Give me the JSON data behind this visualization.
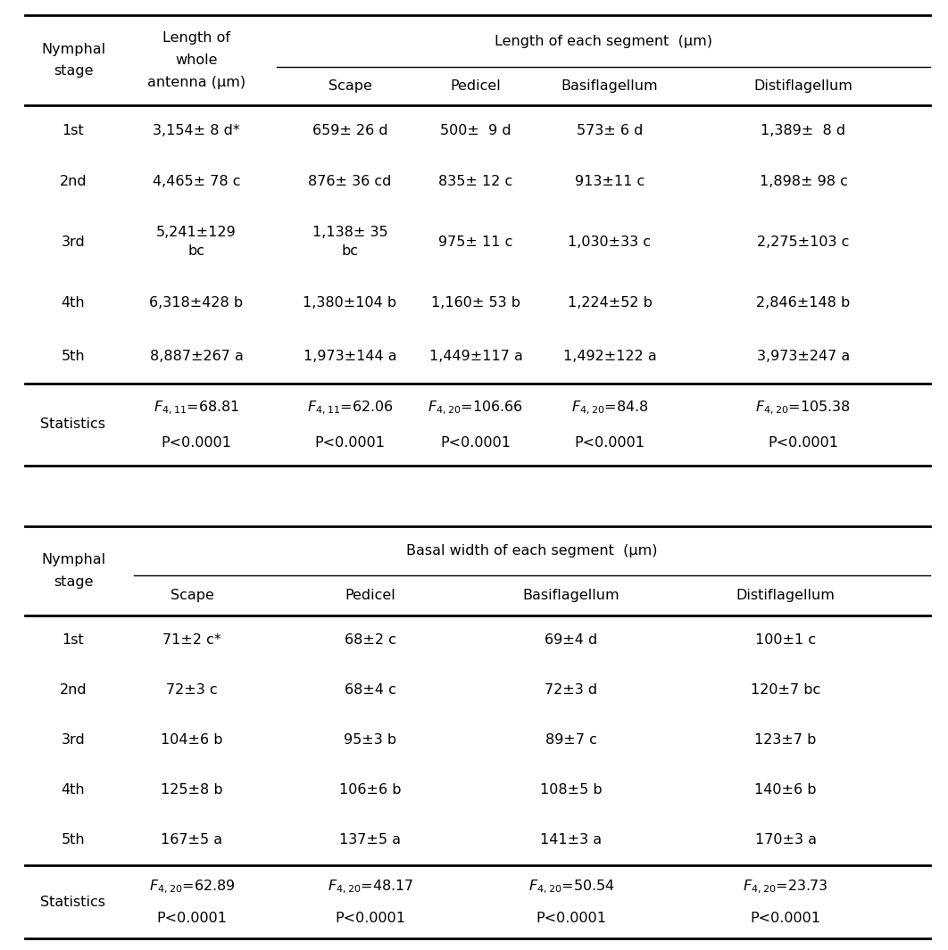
{
  "table1": {
    "col_headers": [
      "Nymphal\nstage",
      "Length of\nwhole\nantenna (μm)",
      "Scape",
      "Pedicel",
      "Basiflagellum",
      "Distiflagellum"
    ],
    "span_header": "Length of each segment  (μm)",
    "rows": [
      [
        "1st",
        "3,154± 8 d*",
        "659± 26 d",
        "500±  9 d",
        "573± 6 d",
        "1,389±  8 d"
      ],
      [
        "2nd",
        "4,465± 78 c",
        "876± 36 cd",
        "835± 12 c",
        "913±11 c",
        "1,898± 98 c"
      ],
      [
        "3rd",
        "5,241±129\nbc",
        "1,138± 35\nbc",
        "975± 11 c",
        "1,030±33 c",
        "2,275±103 c"
      ],
      [
        "4th",
        "6,318±428 b",
        "1,380±104 b",
        "1,160± 53 b",
        "1,224±52 b",
        "2,846±148 b"
      ],
      [
        "5th",
        "8,887±267 a",
        "1,973±144 a",
        "1,449±117 a",
        "1,492±122 a",
        "3,973±247 a"
      ]
    ],
    "fstats": [
      "$F_{4,11}$=68.81",
      "$F_{4,11}$=62.06",
      "$F_{4,20}$=106.66",
      "$F_{4,20}$=84.8",
      "$F_{4,20}$=105.38"
    ],
    "pstats": [
      "P<0.0001",
      "P<0.0001",
      "P<0.0001",
      "P<0.0001",
      "P<0.0001"
    ]
  },
  "table2": {
    "col_headers": [
      "Nymphal\nstage",
      "Scape",
      "Pedicel",
      "Basiflagellum",
      "Distiflagellum"
    ],
    "span_header": "Basal width of each segment  (μm)",
    "rows": [
      [
        "1st",
        "71±2 c*",
        "68±2 c",
        "69±4 d",
        "100±1 c"
      ],
      [
        "2nd",
        "72±3 c",
        "68±4 c",
        "72±3 d",
        "120±7 bc"
      ],
      [
        "3rd",
        "104±6 b",
        "95±3 b",
        "89±7 c",
        "123±7 b"
      ],
      [
        "4th",
        "125±8 b",
        "106±6 b",
        "108±5 b",
        "140±6 b"
      ],
      [
        "5th",
        "167±5 a",
        "137±5 a",
        "141±3 a",
        "170±3 a"
      ]
    ],
    "fstats": [
      "$F_{4,20}$=62.89",
      "$F_{4,20}$=48.17",
      "$F_{4,20}$=50.54",
      "$F_{4,20}$=23.73"
    ],
    "pstats": [
      "P<0.0001",
      "P<0.0001",
      "P<0.0001",
      "P<0.0001"
    ]
  },
  "bg_color": "#ffffff",
  "text_color": "#000000",
  "font_size": 11.5
}
